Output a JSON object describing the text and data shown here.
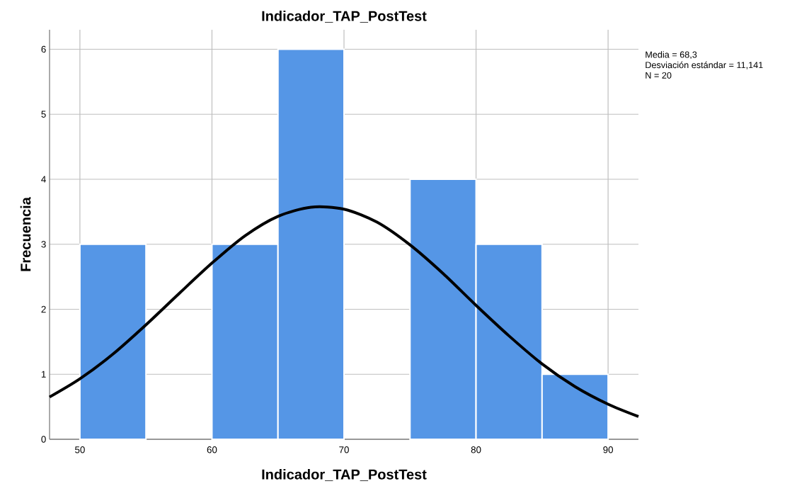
{
  "chart_data": {
    "type": "histogram",
    "title": "Indicador_TAP_PostTest",
    "xlabel": "Indicador_TAP_PostTest",
    "ylabel": "Frecuencia",
    "bins": [
      50,
      55,
      60,
      65,
      70,
      75,
      80,
      85,
      90
    ],
    "series": [
      {
        "color": "#5596e6",
        "values": [
          3,
          0,
          3,
          6,
          0,
          4,
          3,
          1
        ]
      },
      {
        "type": "line",
        "color": "#000000",
        "x": [
          47.7,
          50,
          52.5,
          55,
          57.5,
          60,
          62.5,
          65,
          67.5,
          70,
          72.5,
          75,
          77.5,
          80,
          82.5,
          85,
          87.5,
          90,
          92.3
        ],
        "values": [
          0.65,
          0.93,
          1.31,
          1.76,
          2.24,
          2.71,
          3.13,
          3.43,
          3.57,
          3.54,
          3.34,
          2.99,
          2.55,
          2.06,
          1.59,
          1.16,
          0.81,
          0.54,
          0.35
        ]
      }
    ],
    "xlim": [
      47.7,
      92.3
    ],
    "ylim": [
      0,
      6.3
    ],
    "xticks": [
      50,
      60,
      70,
      80,
      90
    ],
    "yticks": [
      0,
      1,
      2,
      3,
      4,
      5,
      6
    ],
    "grid": true,
    "marker": "none",
    "line_style": "solid",
    "annotations": [
      "Media = 68,3",
      "Desviación estándar = 11,141",
      "N = 20"
    ]
  }
}
